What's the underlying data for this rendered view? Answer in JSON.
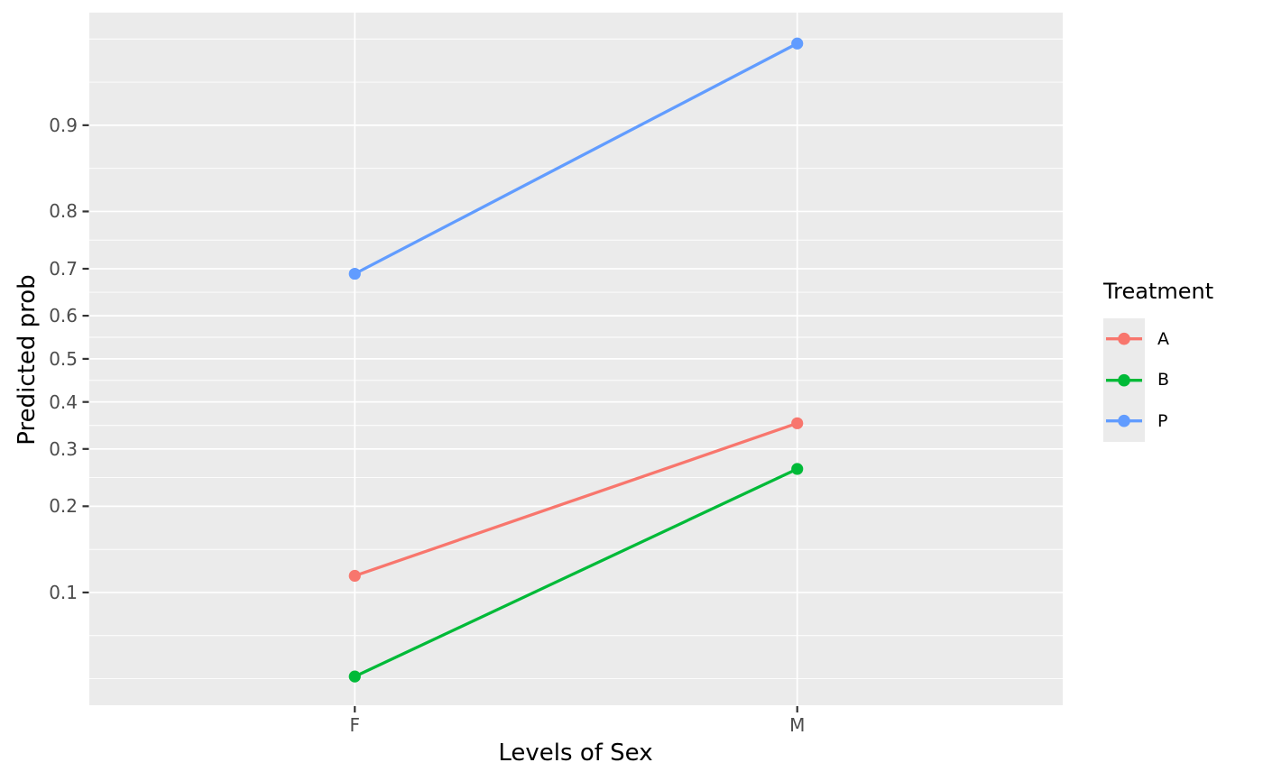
{
  "figure": {
    "background": "#FFFFFF"
  },
  "chart_data": {
    "type": "line",
    "title": "",
    "xlabel": "Levels of Sex",
    "ylabel": "Predicted prob",
    "x_type": "categorical",
    "categories": [
      "F",
      "M"
    ],
    "y_scale": "logit",
    "y_ticks": [
      0.1,
      0.2,
      0.3,
      0.4,
      0.5,
      0.6,
      0.7,
      0.8,
      0.9
    ],
    "y_tick_labels": [
      "0.1",
      "0.2",
      "0.3",
      "0.4",
      "0.5",
      "0.6",
      "0.7",
      "0.8",
      "0.9"
    ],
    "grid": "major+minor",
    "legend_position": "right",
    "legend_title": "Treatment",
    "series": [
      {
        "name": "A",
        "color": "#F8766D",
        "values": [
          0.115,
          0.353
        ]
      },
      {
        "name": "B",
        "color": "#00BA38",
        "values": [
          0.048,
          0.262
        ]
      },
      {
        "name": "P",
        "color": "#619CFF",
        "values": [
          0.69,
          0.951
        ]
      }
    ],
    "style_colors": {
      "panel_background": "#EBEBEB",
      "gridline_major": "#FFFFFF",
      "gridline_minor": "#FFFFFF",
      "tick_mark": "#333333",
      "tick_label": "#4D4D4D",
      "axis_title": "#000000"
    }
  }
}
